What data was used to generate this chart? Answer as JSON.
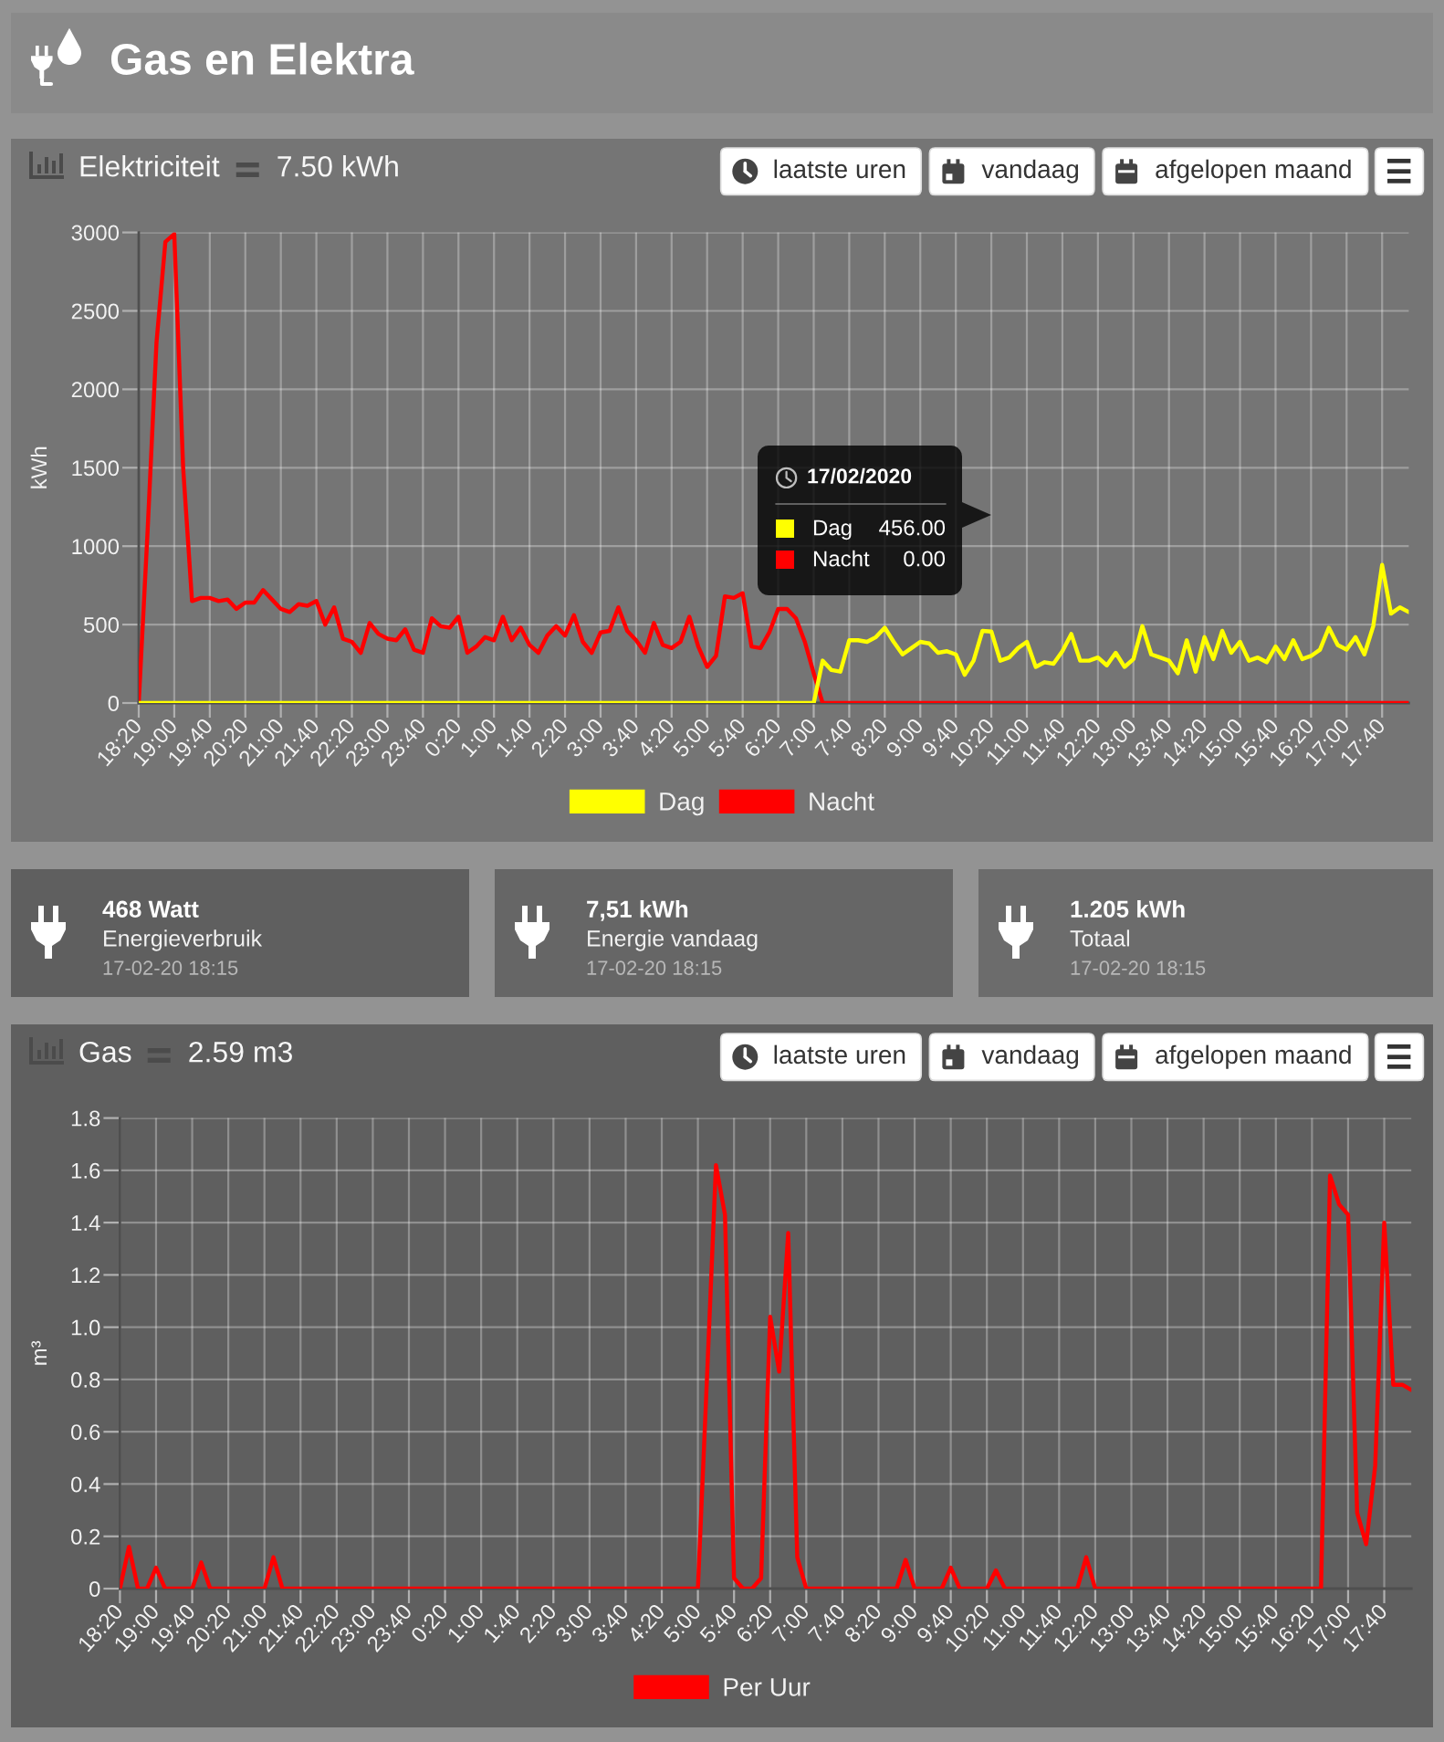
{
  "chart_data": [
    {
      "type": "other",
      "title": "Gas en Elektra"
    },
    {
      "type": "line",
      "title": "Elektriciteit",
      "subtitle": "7.50 kWh",
      "ylabel": "kWh",
      "categories": [
        "18:20",
        null,
        null,
        null,
        "19:00",
        null,
        null,
        null,
        "19:40",
        null,
        null,
        null,
        "20:20",
        null,
        null,
        null,
        "21:00",
        null,
        null,
        null,
        "21:40",
        null,
        null,
        null,
        "22:20",
        null,
        null,
        null,
        "23:00",
        null,
        null,
        null,
        "23:40",
        null,
        null,
        null,
        "0:20",
        null,
        null,
        null,
        "1:00",
        null,
        null,
        null,
        "1:40",
        null,
        null,
        null,
        "2:20",
        null,
        null,
        null,
        "3:00",
        null,
        null,
        null,
        "3:40",
        null,
        null,
        null,
        "4:20",
        null,
        null,
        null,
        "5:00",
        null,
        null,
        null,
        "5:40",
        null,
        null,
        null,
        "6:20",
        null,
        null,
        null,
        "7:00",
        null,
        null,
        null,
        "7:40",
        null,
        null,
        null,
        "8:20",
        null,
        null,
        null,
        "9:00",
        null,
        null,
        null,
        "9:40",
        null,
        null,
        null,
        "10:20",
        null,
        null,
        null,
        "11:00",
        null,
        null,
        null,
        "11:40",
        null,
        null,
        null,
        "12:20",
        null,
        null,
        null,
        "13:00",
        null,
        null,
        null,
        "13:40",
        null,
        null,
        null,
        "14:20",
        null,
        null,
        null,
        "15:00",
        null,
        null,
        null,
        "15:40",
        null,
        null,
        null,
        "16:20",
        null,
        null,
        null,
        "17:00",
        null,
        null,
        null,
        "17:40",
        null,
        null,
        null
      ],
      "series": [
        {
          "name": "Dag",
          "color": "#ffff00",
          "values": [
            0,
            0,
            0,
            0,
            0,
            0,
            0,
            0,
            0,
            0,
            0,
            0,
            0,
            0,
            0,
            0,
            0,
            0,
            0,
            0,
            0,
            0,
            0,
            0,
            0,
            0,
            0,
            0,
            0,
            0,
            0,
            0,
            0,
            0,
            0,
            0,
            0,
            0,
            0,
            0,
            0,
            0,
            0,
            0,
            0,
            0,
            0,
            0,
            0,
            0,
            0,
            0,
            0,
            0,
            0,
            0,
            0,
            0,
            0,
            0,
            0,
            0,
            0,
            0,
            0,
            0,
            0,
            0,
            0,
            0,
            0,
            0,
            0,
            0,
            0,
            0,
            0,
            270,
            210,
            200,
            400,
            400,
            390,
            420,
            480,
            390,
            310,
            350,
            390,
            380,
            320,
            330,
            310,
            180,
            270,
            460,
            456,
            270,
            290,
            350,
            390,
            230,
            260,
            250,
            330,
            440,
            270,
            270,
            290,
            240,
            320,
            230,
            280,
            490,
            310,
            290,
            270,
            190,
            400,
            200,
            420,
            280,
            460,
            320,
            390,
            270,
            290,
            260,
            360,
            280,
            400,
            280,
            300,
            340,
            480,
            370,
            340,
            420,
            310,
            490,
            880,
            570,
            610,
            580
          ]
        },
        {
          "name": "Nacht",
          "color": "#ff0000",
          "values": [
            0,
            1100,
            2300,
            2940,
            2990,
            1500,
            650,
            670,
            670,
            650,
            660,
            600,
            640,
            640,
            720,
            660,
            600,
            580,
            630,
            620,
            650,
            500,
            610,
            410,
            390,
            320,
            510,
            440,
            410,
            400,
            470,
            340,
            320,
            540,
            490,
            480,
            550,
            320,
            360,
            420,
            400,
            550,
            400,
            480,
            370,
            320,
            430,
            490,
            430,
            560,
            390,
            320,
            450,
            460,
            610,
            460,
            400,
            320,
            510,
            370,
            350,
            390,
            550,
            360,
            230,
            300,
            680,
            670,
            700,
            360,
            350,
            450,
            600,
            600,
            540,
            390,
            190,
            0,
            0,
            0,
            0,
            0,
            0,
            0,
            0,
            0,
            0,
            0,
            0,
            0,
            0,
            0,
            0,
            0,
            0,
            0,
            0,
            0,
            0,
            0,
            0,
            0,
            0,
            0,
            0,
            0,
            0,
            0,
            0,
            0,
            0,
            0,
            0,
            0,
            0,
            0,
            0,
            0,
            0,
            0,
            0,
            0,
            0,
            0,
            0,
            0,
            0,
            0,
            0,
            0,
            0,
            0,
            0,
            0,
            0,
            0,
            0,
            0,
            0,
            0,
            0,
            0,
            0,
            0
          ]
        }
      ],
      "ylim": [
        0,
        3000
      ],
      "yticks": [
        0,
        500,
        1000,
        1500,
        2000,
        2500,
        3000
      ],
      "grid": true,
      "legend": "bottom",
      "annotations": [
        "17/02/2020",
        "Dag",
        "456.00",
        "Nacht",
        "0.00",
        "laatste uren",
        "vandaag",
        "afgelopen maand"
      ]
    },
    {
      "type": "other",
      "title": "468 Watt",
      "subtitle": "Energieverbruik",
      "annotations": [
        "17-02-20 18:15"
      ]
    },
    {
      "type": "other",
      "title": "7,51 kWh",
      "subtitle": "Energie vandaag",
      "annotations": [
        "17-02-20 18:15"
      ]
    },
    {
      "type": "other",
      "title": "1.205 kWh",
      "subtitle": "Totaal",
      "annotations": [
        "17-02-20 18:15"
      ]
    },
    {
      "type": "line",
      "title": "Gas",
      "subtitle": "2.59 m3",
      "ylabel": "m³",
      "categories": [
        "18:20",
        null,
        null,
        null,
        "19:00",
        null,
        null,
        null,
        "19:40",
        null,
        null,
        null,
        "20:20",
        null,
        null,
        null,
        "21:00",
        null,
        null,
        null,
        "21:40",
        null,
        null,
        null,
        "22:20",
        null,
        null,
        null,
        "23:00",
        null,
        null,
        null,
        "23:40",
        null,
        null,
        null,
        "0:20",
        null,
        null,
        null,
        "1:00",
        null,
        null,
        null,
        "1:40",
        null,
        null,
        null,
        "2:20",
        null,
        null,
        null,
        "3:00",
        null,
        null,
        null,
        "3:40",
        null,
        null,
        null,
        "4:20",
        null,
        null,
        null,
        "5:00",
        null,
        null,
        null,
        "5:40",
        null,
        null,
        null,
        "6:20",
        null,
        null,
        null,
        "7:00",
        null,
        null,
        null,
        "7:40",
        null,
        null,
        null,
        "8:20",
        null,
        null,
        null,
        "9:00",
        null,
        null,
        null,
        "9:40",
        null,
        null,
        null,
        "10:20",
        null,
        null,
        null,
        "11:00",
        null,
        null,
        null,
        "11:40",
        null,
        null,
        null,
        "12:20",
        null,
        null,
        null,
        "13:00",
        null,
        null,
        null,
        "13:40",
        null,
        null,
        null,
        "14:20",
        null,
        null,
        null,
        "15:00",
        null,
        null,
        null,
        "15:40",
        null,
        null,
        null,
        "16:20",
        null,
        null,
        null,
        "17:00",
        null,
        null,
        null,
        "17:40",
        null,
        null,
        null
      ],
      "series": [
        {
          "name": "Per Uur",
          "color": "#ff0000",
          "values": [
            0,
            0.16,
            0,
            0,
            0.08,
            0,
            0,
            0,
            0,
            0.1,
            0,
            0,
            0,
            0,
            0,
            0,
            0,
            0.12,
            0,
            0,
            0,
            0,
            0,
            0,
            0,
            0,
            0,
            0,
            0,
            0,
            0,
            0,
            0,
            0,
            0,
            0,
            0,
            0,
            0,
            0,
            0,
            0,
            0,
            0,
            0,
            0,
            0,
            0,
            0,
            0,
            0,
            0,
            0,
            0,
            0,
            0,
            0,
            0,
            0,
            0,
            0,
            0,
            0,
            0,
            0,
            0.8,
            1.62,
            1.43,
            0.04,
            0,
            0,
            0.04,
            1.04,
            0.83,
            1.36,
            0.12,
            0,
            0,
            0,
            0,
            0,
            0,
            0,
            0,
            0,
            0,
            0,
            0.11,
            0,
            0,
            0,
            0,
            0.08,
            0,
            0,
            0,
            0,
            0.07,
            0,
            0,
            0,
            0,
            0,
            0,
            0,
            0,
            0,
            0.12,
            0,
            0,
            0,
            0,
            0,
            0,
            0,
            0,
            0,
            0,
            0,
            0,
            0,
            0,
            0,
            0,
            0,
            0,
            0,
            0,
            0,
            0,
            0,
            0,
            0,
            0,
            1.58,
            1.47,
            1.43,
            0.29,
            0.17,
            0.47,
            1.4,
            0.78,
            0.78,
            0.76
          ]
        }
      ],
      "ylim": [
        0,
        1.8
      ],
      "yticks": [
        0,
        0.2,
        0.4,
        0.6,
        0.8,
        {
          "value": 1,
          "label": "1.0"
        },
        1.2,
        1.4,
        1.6,
        1.8
      ],
      "grid": true,
      "legend": "bottom",
      "annotations": [
        "laatste uren",
        "vandaag",
        "afgelopen maand"
      ]
    }
  ]
}
